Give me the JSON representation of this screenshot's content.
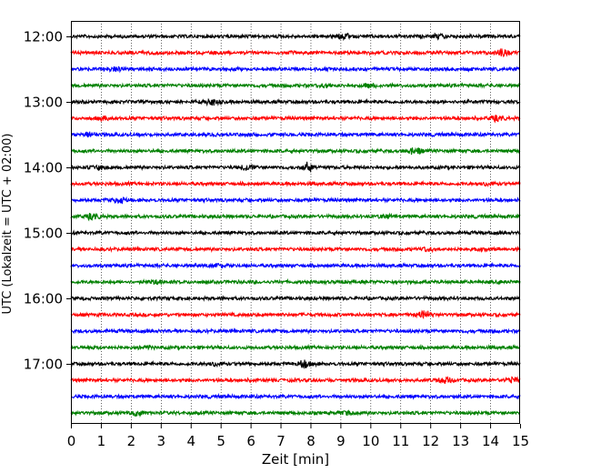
{
  "chart_data": {
    "type": "line",
    "title": "",
    "xlabel": "Zeit  [min]",
    "ylabel": "UTC (Lokalzeit = UTC + 02:00)",
    "xlim": [
      0,
      15
    ],
    "x_ticks": [
      "0",
      "1",
      "2",
      "3",
      "4",
      "5",
      "6",
      "7",
      "8",
      "9",
      "10",
      "11",
      "12",
      "13",
      "14",
      "15"
    ],
    "grid": "vertical dotted lines at each minute",
    "legend": "none",
    "y_ticks": [
      {
        "label": "12:00",
        "row": 0
      },
      {
        "label": "13:00",
        "row": 4
      },
      {
        "label": "14:00",
        "row": 8
      },
      {
        "label": "15:00",
        "row": 12
      },
      {
        "label": "16:00",
        "row": 16
      },
      {
        "label": "17:00",
        "row": 20
      }
    ],
    "trace_colors": [
      "#000000",
      "#ff0000",
      "#0000ff",
      "#008000"
    ],
    "rows_count": 24,
    "row_interval": "15 min per trace",
    "events": [
      {
        "row": 0,
        "x": 9.1,
        "amp": 2.2
      },
      {
        "row": 0,
        "x": 12.3,
        "amp": 1.8
      },
      {
        "row": 1,
        "x": 14.4,
        "amp": 2.6
      },
      {
        "row": 2,
        "x": 1.5,
        "amp": 1.8
      },
      {
        "row": 3,
        "x": 8.5,
        "amp": 1.5
      },
      {
        "row": 3,
        "x": 10.0,
        "amp": 1.5
      },
      {
        "row": 4,
        "x": 4.7,
        "amp": 3.0
      },
      {
        "row": 5,
        "x": 1.1,
        "amp": 1.6
      },
      {
        "row": 5,
        "x": 14.2,
        "amp": 2.0
      },
      {
        "row": 6,
        "x": 0.6,
        "amp": 2.2
      },
      {
        "row": 7,
        "x": 11.5,
        "amp": 3.5
      },
      {
        "row": 8,
        "x": 5.9,
        "amp": 2.5
      },
      {
        "row": 8,
        "x": 7.9,
        "amp": 3.5
      },
      {
        "row": 8,
        "x": 1.0,
        "amp": 1.5
      },
      {
        "row": 9,
        "x": 14.0,
        "amp": 1.5
      },
      {
        "row": 10,
        "x": 1.6,
        "amp": 2.4
      },
      {
        "row": 11,
        "x": 0.7,
        "amp": 2.2
      },
      {
        "row": 11,
        "x": 10.5,
        "amp": 1.4
      },
      {
        "row": 13,
        "x": 11.9,
        "amp": 1.6
      },
      {
        "row": 14,
        "x": 4.9,
        "amp": 1.5
      },
      {
        "row": 15,
        "x": 2.9,
        "amp": 1.6
      },
      {
        "row": 17,
        "x": 11.8,
        "amp": 3.2
      },
      {
        "row": 19,
        "x": 2.5,
        "amp": 1.3
      },
      {
        "row": 20,
        "x": 7.8,
        "amp": 3.0
      },
      {
        "row": 20,
        "x": 4.9,
        "amp": 1.6
      },
      {
        "row": 21,
        "x": 12.5,
        "amp": 2.8
      },
      {
        "row": 21,
        "x": 14.8,
        "amp": 2.0
      },
      {
        "row": 23,
        "x": 2.2,
        "amp": 2.0
      },
      {
        "row": 23,
        "x": 9.2,
        "amp": 1.3
      }
    ]
  }
}
